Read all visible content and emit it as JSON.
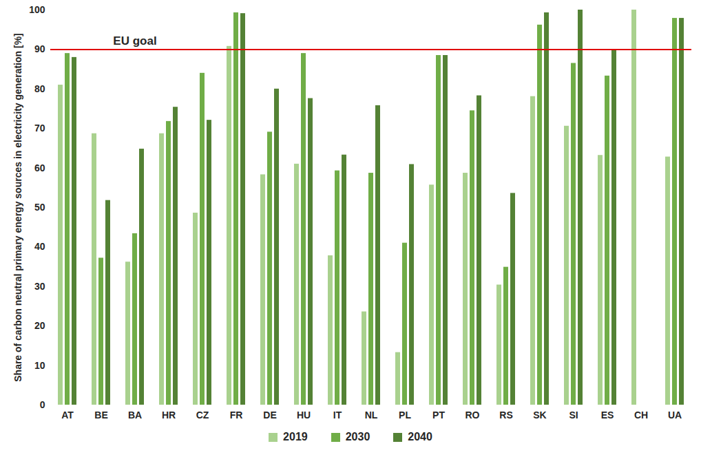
{
  "chart_data": {
    "type": "bar",
    "y_label": "Share of carbon neutral primary energy sources in electricity generation [%]",
    "categories": [
      "AT",
      "BE",
      "BA",
      "HR",
      "CZ",
      "FR",
      "DE",
      "HU",
      "IT",
      "NL",
      "PL",
      "PT",
      "RO",
      "RS",
      "SK",
      "SI",
      "ES",
      "CH",
      "UA"
    ],
    "series": [
      {
        "name": "2019",
        "color": "#a9d18e",
        "values": [
          81,
          68.7,
          36.2,
          68.7,
          48.6,
          90.8,
          58.3,
          61,
          37.8,
          23.6,
          13.3,
          55.7,
          58.7,
          30.4,
          78.1,
          70.6,
          63.2,
          100,
          62.8
        ]
      },
      {
        "name": "2030",
        "color": "#70ad47",
        "values": [
          89,
          37.2,
          43.4,
          71.8,
          84,
          99.3,
          69.1,
          89,
          59.3,
          58.7,
          41,
          88.5,
          74.5,
          34.9,
          96.2,
          86.5,
          83.3,
          null,
          97.9
        ]
      },
      {
        "name": "2040",
        "color": "#548235",
        "values": [
          88,
          51.8,
          64.8,
          75.4,
          72.1,
          99.1,
          80,
          77.6,
          63.3,
          75.8,
          60.9,
          88.5,
          78.3,
          53.6,
          99.3,
          100,
          89.8,
          null,
          97.9
        ]
      }
    ],
    "annotations": [
      {
        "text": "EU goal",
        "y": 90,
        "color": "#e00000"
      }
    ],
    "ylim": [
      0,
      100
    ],
    "yticks": [
      0,
      10,
      20,
      30,
      40,
      50,
      60,
      70,
      80,
      90,
      100
    ],
    "grid": false,
    "legend": "bottom"
  }
}
